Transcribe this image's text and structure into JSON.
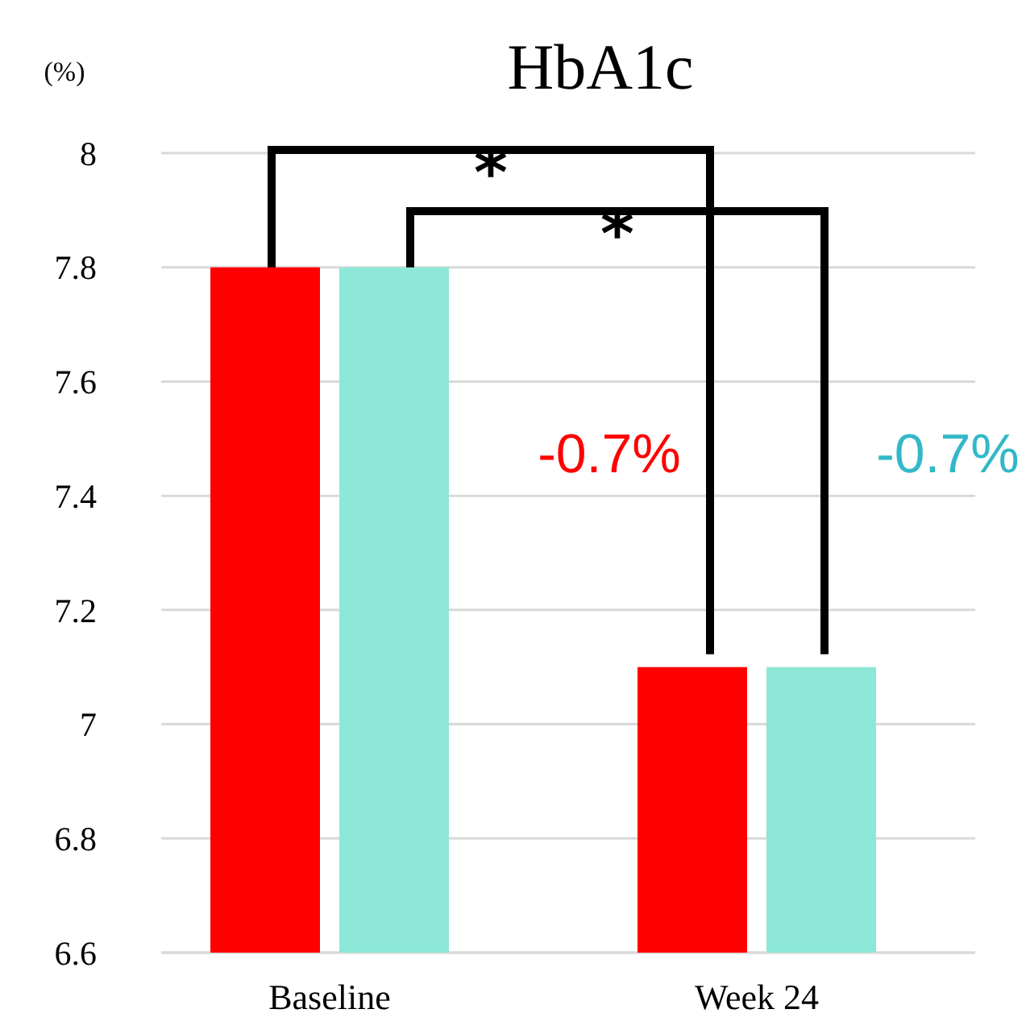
{
  "chart_data": {
    "type": "bar",
    "title": "HbA1c",
    "ylabel": "(%)",
    "categories": [
      "Baseline",
      "Week 24"
    ],
    "series": [
      {
        "color": "#ff0000",
        "values": [
          7.8,
          7.1
        ]
      },
      {
        "color": "#8de8d8",
        "values": [
          7.8,
          7.1
        ]
      }
    ],
    "ylim": [
      6.6,
      8
    ],
    "yticks": [
      6.6,
      6.8,
      7,
      7.2,
      7.4,
      7.6,
      7.8,
      8
    ],
    "grid": "y",
    "annotations": [
      "*",
      "*",
      "-0.7%",
      "-0.7%"
    ]
  }
}
